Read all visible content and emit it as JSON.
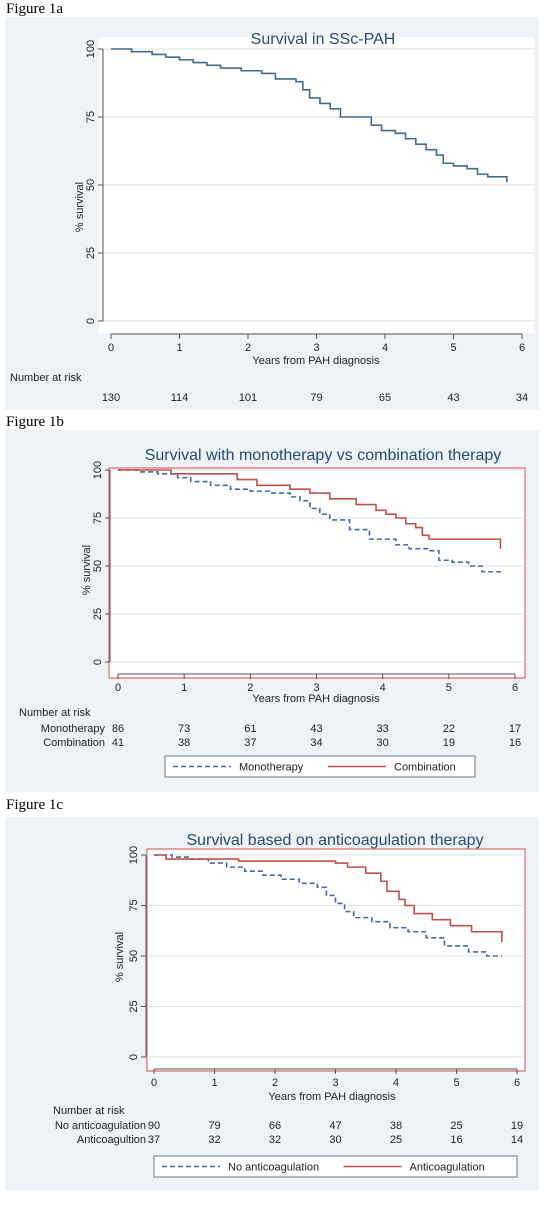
{
  "figures": [
    {
      "caption": "Figure 1a"
    },
    {
      "caption": "Figure 1b"
    },
    {
      "caption": "Figure 1c"
    }
  ],
  "chart_data": [
    {
      "type": "line",
      "title": "Survival in SSc-PAH",
      "xlabel": "Years from PAH diagnosis",
      "ylabel": "% survival",
      "xlim": [
        0,
        6
      ],
      "ylim": [
        0,
        100
      ],
      "xticks": [
        "0",
        "1",
        "2",
        "3",
        "4",
        "5",
        "6"
      ],
      "yticks": [
        "0",
        "25",
        "50",
        "75",
        "100"
      ],
      "risk_title": "Number at risk",
      "series": [
        {
          "name": "",
          "style": "solid",
          "color": "#4a6a8a",
          "x": [
            0,
            0.3,
            0.6,
            0.8,
            1.0,
            1.2,
            1.4,
            1.6,
            1.9,
            2.2,
            2.4,
            2.7,
            2.8,
            2.9,
            3.05,
            3.2,
            3.35,
            3.6,
            3.8,
            3.95,
            4.15,
            4.3,
            4.45,
            4.6,
            4.75,
            4.85,
            5.0,
            5.2,
            5.35,
            5.5,
            5.6,
            5.78
          ],
          "y": [
            100,
            99,
            98,
            97,
            96,
            95,
            94,
            93,
            92,
            91,
            89,
            88,
            85,
            82,
            80,
            78,
            75,
            75,
            72,
            70,
            69,
            67,
            65,
            63,
            61,
            58,
            57,
            56,
            54,
            53,
            53,
            51
          ]
        }
      ],
      "risk_table": [
        {
          "label": "",
          "values": [
            "130",
            "114",
            "101",
            "79",
            "65",
            "43",
            "34"
          ]
        }
      ]
    },
    {
      "type": "line",
      "title": "Survival with monotherapy vs combination therapy",
      "xlabel": "Years from PAH diagnosis",
      "ylabel": "% survival",
      "xlim": [
        0,
        6
      ],
      "ylim": [
        0,
        100
      ],
      "xticks": [
        "0",
        "1",
        "2",
        "3",
        "4",
        "5",
        "6"
      ],
      "yticks": [
        "0",
        "25",
        "50",
        "75",
        "100"
      ],
      "risk_title": "Number at risk",
      "series": [
        {
          "name": "Monotherapy",
          "style": "dashed",
          "color": "#4a6a9a",
          "x": [
            0,
            0.3,
            0.6,
            0.9,
            1.1,
            1.4,
            1.7,
            2.0,
            2.3,
            2.6,
            2.75,
            2.9,
            3.05,
            3.2,
            3.5,
            3.8,
            4.2,
            4.4,
            4.7,
            4.85,
            5.05,
            5.3,
            5.5,
            5.8
          ],
          "y": [
            100,
            99,
            98,
            96,
            94,
            92,
            90,
            89,
            88,
            86,
            84,
            80,
            77,
            74,
            69,
            64,
            61,
            59,
            58,
            53,
            52,
            50,
            47,
            47
          ]
        },
        {
          "name": "Combination",
          "style": "solid",
          "color": "#c0504d",
          "x": [
            0,
            0.4,
            0.8,
            1.2,
            1.8,
            2.1,
            2.6,
            2.9,
            3.2,
            3.6,
            3.9,
            4.05,
            4.2,
            4.35,
            4.5,
            4.6,
            4.7,
            5.4,
            5.78
          ],
          "y": [
            100,
            100,
            98,
            98,
            95,
            92,
            90,
            88,
            85,
            82,
            79,
            77,
            75,
            72,
            70,
            66,
            64,
            64,
            59
          ]
        }
      ],
      "risk_table": [
        {
          "label": "Monotherapy",
          "values": [
            "86",
            "73",
            "61",
            "43",
            "33",
            "22",
            "17"
          ]
        },
        {
          "label": "Combination",
          "values": [
            "41",
            "38",
            "37",
            "34",
            "30",
            "19",
            "16"
          ]
        }
      ]
    },
    {
      "type": "line",
      "title": "Survival based on anticoagulation therapy",
      "xlabel": "Years from PAH diagnosis",
      "ylabel": "% survival",
      "xlim": [
        0,
        6
      ],
      "ylim": [
        0,
        100
      ],
      "xticks": [
        "0",
        "1",
        "2",
        "3",
        "4",
        "5",
        "6"
      ],
      "yticks": [
        "0",
        "25",
        "50",
        "75",
        "100"
      ],
      "risk_title": "Number at risk",
      "series": [
        {
          "name": "No anticoagulation",
          "style": "dashed",
          "color": "#4a6a9a",
          "x": [
            0,
            0.3,
            0.6,
            0.9,
            1.2,
            1.5,
            1.8,
            2.1,
            2.4,
            2.7,
            2.85,
            3.0,
            3.15,
            3.3,
            3.6,
            3.9,
            4.2,
            4.5,
            4.8,
            5.2,
            5.5,
            5.75
          ],
          "y": [
            100,
            99,
            98,
            96,
            94,
            92,
            90,
            88,
            86,
            84,
            80,
            76,
            72,
            69,
            67,
            64,
            62,
            59,
            55,
            52,
            50,
            50
          ]
        },
        {
          "name": "Anticoagulation",
          "style": "solid",
          "color": "#c0504d",
          "x": [
            0,
            0.2,
            0.8,
            1.4,
            2.0,
            2.6,
            3.0,
            3.2,
            3.5,
            3.75,
            3.85,
            4.05,
            4.15,
            4.3,
            4.6,
            4.9,
            5.25,
            5.75
          ],
          "y": [
            100,
            98,
            98,
            97,
            97,
            97,
            96,
            94,
            91,
            87,
            82,
            78,
            75,
            71,
            68,
            65,
            62,
            57
          ]
        }
      ],
      "risk_table": [
        {
          "label": "No anticoagulation",
          "values": [
            "90",
            "79",
            "66",
            "47",
            "38",
            "25",
            "19"
          ]
        },
        {
          "label": "Anticoagultion",
          "values": [
            "37",
            "32",
            "32",
            "30",
            "25",
            "16",
            "14"
          ]
        }
      ]
    }
  ]
}
